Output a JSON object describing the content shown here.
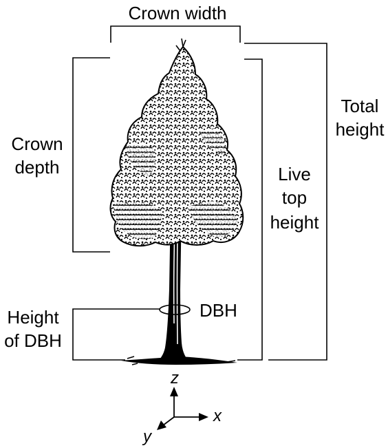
{
  "labels": {
    "crown_width": "Crown width",
    "crown_depth": [
      "Crown",
      "depth"
    ],
    "total_height": [
      "Total",
      "height"
    ],
    "live_top_height": [
      "Live",
      "top",
      "height"
    ],
    "dbh": "DBH",
    "height_of_dbh": [
      "Height",
      "of DBH"
    ]
  },
  "axes": {
    "x": "x",
    "y": "y",
    "z": "z"
  },
  "icons": {
    "tree": "conifer-tree-illustration",
    "axes": "3d-axes-icon"
  }
}
